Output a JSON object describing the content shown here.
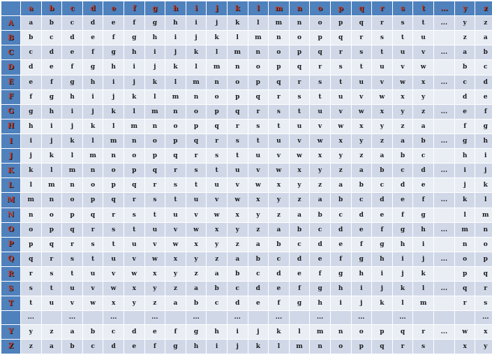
{
  "columns": [
    "a",
    "b",
    "c",
    "d",
    "e",
    "f",
    "g",
    "h",
    "i",
    "j",
    "k",
    "l",
    "m",
    "n",
    "o",
    "p",
    "q",
    "r",
    "s",
    "t",
    "...",
    "y",
    "z"
  ],
  "rows": [
    {
      "label": "A",
      "cells": [
        "a",
        "b",
        "c",
        "d",
        "e",
        "f",
        "g",
        "h",
        "i",
        "j",
        "k",
        "l",
        "m",
        "n",
        "o",
        "p",
        "q",
        "r",
        "s",
        "t",
        "...",
        "y",
        "z"
      ]
    },
    {
      "label": "B",
      "cells": [
        "b",
        "c",
        "d",
        "e",
        "f",
        "g",
        "h",
        "i",
        "j",
        "k",
        "l",
        "m",
        "n",
        "o",
        "p",
        "q",
        "r",
        "s",
        "t",
        "u",
        "",
        "z",
        "a"
      ]
    },
    {
      "label": "C",
      "cells": [
        "c",
        "d",
        "e",
        "f",
        "g",
        "h",
        "i",
        "j",
        "k",
        "l",
        "m",
        "n",
        "o",
        "p",
        "q",
        "r",
        "s",
        "t",
        "u",
        "v",
        "...",
        "a",
        "b"
      ]
    },
    {
      "label": "D",
      "cells": [
        "d",
        "e",
        "f",
        "g",
        "h",
        "i",
        "j",
        "k",
        "l",
        "m",
        "n",
        "o",
        "p",
        "q",
        "r",
        "s",
        "t",
        "u",
        "v",
        "w",
        "",
        "b",
        "c"
      ]
    },
    {
      "label": "E",
      "cells": [
        "e",
        "f",
        "g",
        "h",
        "i",
        "j",
        "k",
        "l",
        "m",
        "n",
        "o",
        "p",
        "q",
        "r",
        "s",
        "t",
        "u",
        "v",
        "w",
        "x",
        "...",
        "c",
        "d"
      ]
    },
    {
      "label": "F",
      "cells": [
        "f",
        "g",
        "h",
        "i",
        "j",
        "k",
        "l",
        "m",
        "n",
        "o",
        "p",
        "q",
        "r",
        "s",
        "t",
        "u",
        "v",
        "w",
        "x",
        "y",
        "",
        "d",
        "e"
      ]
    },
    {
      "label": "G",
      "cells": [
        "g",
        "h",
        "i",
        "j",
        "k",
        "l",
        "m",
        "n",
        "o",
        "p",
        "q",
        "r",
        "s",
        "t",
        "u",
        "v",
        "w",
        "x",
        "y",
        "z",
        "...",
        "e",
        "f"
      ]
    },
    {
      "label": "H",
      "cells": [
        "h",
        "i",
        "j",
        "k",
        "l",
        "m",
        "n",
        "o",
        "p",
        "q",
        "r",
        "s",
        "t",
        "u",
        "v",
        "w",
        "x",
        "y",
        "z",
        "a",
        "",
        "f",
        "g"
      ]
    },
    {
      "label": "I",
      "cells": [
        "i",
        "j",
        "k",
        "l",
        "m",
        "n",
        "o",
        "p",
        "q",
        "r",
        "s",
        "t",
        "u",
        "v",
        "w",
        "x",
        "y",
        "z",
        "a",
        "b",
        "...",
        "g",
        "h"
      ]
    },
    {
      "label": "J",
      "cells": [
        "j",
        "k",
        "l",
        "m",
        "n",
        "o",
        "p",
        "q",
        "r",
        "s",
        "t",
        "u",
        "v",
        "w",
        "x",
        "y",
        "z",
        "a",
        "b",
        "c",
        "",
        "h",
        "i"
      ]
    },
    {
      "label": "K",
      "cells": [
        "k",
        "l",
        "m",
        "n",
        "o",
        "p",
        "q",
        "r",
        "s",
        "t",
        "u",
        "v",
        "w",
        "x",
        "y",
        "z",
        "a",
        "b",
        "c",
        "d",
        "...",
        "i",
        "j"
      ]
    },
    {
      "label": "L",
      "cells": [
        "l",
        "m",
        "n",
        "o",
        "p",
        "q",
        "r",
        "s",
        "t",
        "u",
        "v",
        "w",
        "x",
        "y",
        "z",
        "a",
        "b",
        "c",
        "d",
        "e",
        "",
        "j",
        "k"
      ]
    },
    {
      "label": "M",
      "cells": [
        "m",
        "n",
        "o",
        "p",
        "q",
        "r",
        "s",
        "t",
        "u",
        "v",
        "w",
        "x",
        "y",
        "z",
        "a",
        "b",
        "c",
        "d",
        "e",
        "f",
        "...",
        "k",
        "l"
      ]
    },
    {
      "label": "N",
      "cells": [
        "n",
        "o",
        "p",
        "q",
        "r",
        "s",
        "t",
        "u",
        "v",
        "w",
        "x",
        "y",
        "z",
        "a",
        "b",
        "c",
        "d",
        "e",
        "f",
        "g",
        "",
        "l",
        "m"
      ]
    },
    {
      "label": "O",
      "cells": [
        "o",
        "p",
        "q",
        "r",
        "s",
        "t",
        "u",
        "v",
        "w",
        "x",
        "y",
        "z",
        "a",
        "b",
        "c",
        "d",
        "e",
        "f",
        "g",
        "h",
        "...",
        "m",
        "n"
      ]
    },
    {
      "label": "P",
      "cells": [
        "p",
        "q",
        "r",
        "s",
        "t",
        "u",
        "v",
        "w",
        "x",
        "y",
        "z",
        "a",
        "b",
        "c",
        "d",
        "e",
        "f",
        "g",
        "h",
        "i",
        "",
        "n",
        "o"
      ]
    },
    {
      "label": "Q",
      "cells": [
        "q",
        "r",
        "s",
        "t",
        "u",
        "v",
        "w",
        "x",
        "y",
        "z",
        "a",
        "b",
        "c",
        "d",
        "e",
        "f",
        "g",
        "h",
        "i",
        "j",
        "...",
        "o",
        "p"
      ]
    },
    {
      "label": "R",
      "cells": [
        "r",
        "s",
        "t",
        "u",
        "v",
        "w",
        "x",
        "y",
        "z",
        "a",
        "b",
        "c",
        "d",
        "e",
        "f",
        "g",
        "h",
        "i",
        "j",
        "k",
        "",
        "p",
        "q"
      ]
    },
    {
      "label": "S",
      "cells": [
        "s",
        "t",
        "u",
        "v",
        "w",
        "x",
        "y",
        "z",
        "a",
        "b",
        "c",
        "d",
        "e",
        "f",
        "g",
        "h",
        "i",
        "j",
        "k",
        "l",
        "...",
        "q",
        "r"
      ]
    },
    {
      "label": "T",
      "cells": [
        "t",
        "u",
        "v",
        "w",
        "x",
        "y",
        "z",
        "a",
        "b",
        "c",
        "d",
        "e",
        "f",
        "g",
        "h",
        "i",
        "j",
        "k",
        "l",
        "m",
        "",
        "r",
        "s"
      ]
    },
    {
      "label": "",
      "cells": [
        "...",
        "",
        "...",
        "",
        "...",
        "",
        "...",
        "",
        "...",
        "",
        "...",
        "",
        "...",
        "",
        "...",
        "",
        "...",
        "",
        "...",
        "",
        "",
        "",
        "..."
      ]
    },
    {
      "label": "Y",
      "cells": [
        "y",
        "z",
        "a",
        "b",
        "c",
        "d",
        "e",
        "f",
        "g",
        "h",
        "i",
        "j",
        "k",
        "l",
        "m",
        "n",
        "o",
        "p",
        "q",
        "r",
        "...",
        "w",
        "x"
      ]
    },
    {
      "label": "Z",
      "cells": [
        "z",
        "a",
        "b",
        "c",
        "d",
        "e",
        "f",
        "g",
        "h",
        "i",
        "j",
        "k",
        "l",
        "m",
        "n",
        "o",
        "p",
        "q",
        "r",
        "s",
        "",
        "x",
        "y"
      ]
    }
  ],
  "colors": {
    "header_bg": "#4f81bd",
    "row_odd": "#d0d8e8",
    "row_even": "#e9edf4",
    "header_text": "#c0392b"
  }
}
